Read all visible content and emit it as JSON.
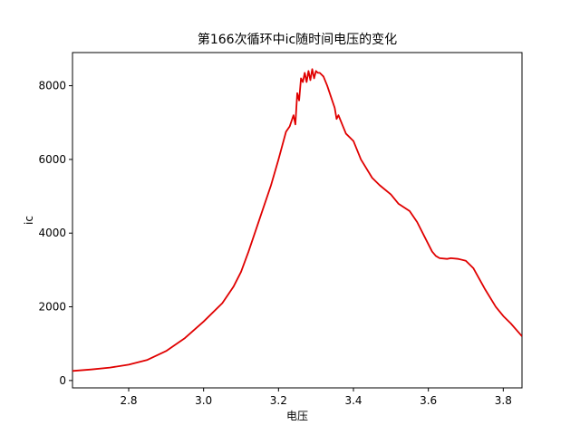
{
  "chart_data": {
    "type": "line",
    "title": "第166次循环中ic随时间电压的变化",
    "xlabel": "电压",
    "ylabel": "ic",
    "xlim": [
      2.65,
      3.85
    ],
    "ylim": [
      -200,
      8900
    ],
    "xticks": [
      "2.8",
      "3.0",
      "3.2",
      "3.4",
      "3.6",
      "3.8"
    ],
    "yticks": [
      "0",
      "2000",
      "4000",
      "6000",
      "8000"
    ],
    "grid": false,
    "legend": "none",
    "series": [
      {
        "color": "#e00000",
        "x": [
          2.65,
          2.7,
          2.75,
          2.8,
          2.85,
          2.9,
          2.95,
          3.0,
          3.05,
          3.08,
          3.1,
          3.12,
          3.15,
          3.18,
          3.2,
          3.22,
          3.23,
          3.24,
          3.245,
          3.25,
          3.255,
          3.26,
          3.265,
          3.27,
          3.275,
          3.28,
          3.285,
          3.29,
          3.295,
          3.3,
          3.305,
          3.31,
          3.315,
          3.32,
          3.33,
          3.34,
          3.35,
          3.355,
          3.36,
          3.37,
          3.38,
          3.4,
          3.42,
          3.45,
          3.47,
          3.5,
          3.52,
          3.55,
          3.57,
          3.59,
          3.61,
          3.62,
          3.63,
          3.65,
          3.66,
          3.68,
          3.7,
          3.72,
          3.75,
          3.78,
          3.8,
          3.82,
          3.85
        ],
        "y": [
          260,
          300,
          350,
          430,
          560,
          800,
          1150,
          1600,
          2100,
          2550,
          2950,
          3500,
          4400,
          5300,
          6000,
          6750,
          6900,
          7200,
          6950,
          7800,
          7600,
          8200,
          8100,
          8350,
          8100,
          8400,
          8150,
          8450,
          8200,
          8400,
          8350,
          8350,
          8300,
          8250,
          8000,
          7700,
          7400,
          7100,
          7200,
          6950,
          6700,
          6500,
          6000,
          5500,
          5300,
          5050,
          4800,
          4600,
          4300,
          3900,
          3500,
          3380,
          3320,
          3300,
          3320,
          3300,
          3250,
          3050,
          2500,
          2000,
          1750,
          1550,
          1200
        ]
      }
    ]
  }
}
